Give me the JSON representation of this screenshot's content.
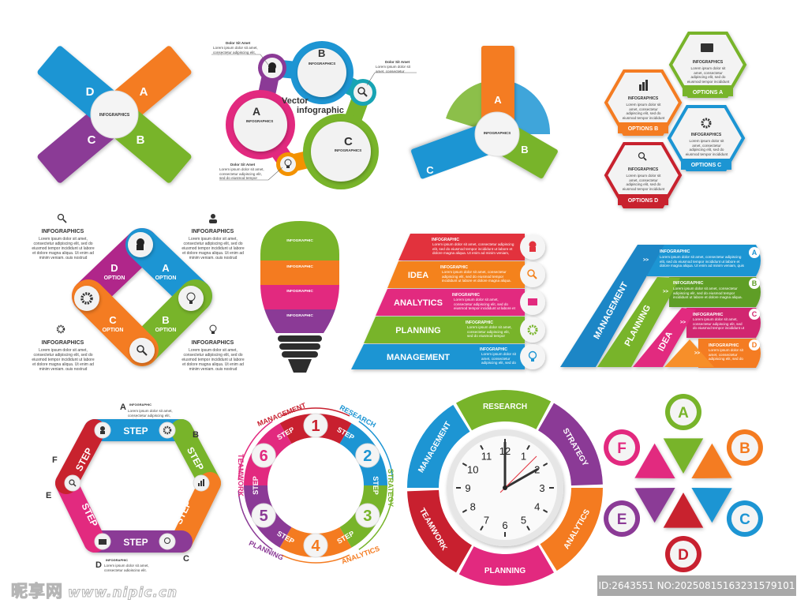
{
  "lorem": "Lorem ipsum dolor sit amet, consectetur adipiscing elit, sed do eiusmod tempor incididunt ut labore et dolore magna aliqua. Ut enim ad minim veniam, quis nostrud exercitation ullamco.",
  "colors": {
    "orange": "#f47b20",
    "green": "#78b42a",
    "blue": "#1d95d3",
    "purple": "#8b3a96",
    "pink": "#e2297f",
    "red": "#c8202f",
    "teal": "#18a4b4"
  },
  "x_diagram": {
    "letters": [
      "A",
      "B",
      "C",
      "D"
    ],
    "center_title": "INFOGRAPHICS"
  },
  "vector_diagram": {
    "title_line1": "Vector",
    "title_line2": "infographic",
    "circle_title": "INFOGRAPHICS",
    "letters": [
      "A",
      "B",
      "C"
    ],
    "callout_title": "Dolor Sit Amet",
    "icons": [
      "head-icon",
      "magnifier-icon",
      "bulb-icon"
    ]
  },
  "propeller": {
    "letters": [
      "A",
      "B",
      "C"
    ],
    "center_title": "INFOGRAPHICS"
  },
  "hexagons": {
    "title": "INFOGRAPHICS",
    "options": [
      "OPTIONS A",
      "OPTIONS B",
      "OPTIONS C",
      "OPTIONS D"
    ],
    "icons": [
      "briefcase-icon",
      "chart-icon",
      "gear-icon",
      "magnifier-icon"
    ]
  },
  "diamond": {
    "letters": [
      "D",
      "A",
      "B",
      "C"
    ],
    "option": "OPTION",
    "title": "INFOGRAPHICS"
  },
  "bulb": {
    "band_title": "INFOGRAPHIC"
  },
  "pyramid": {
    "levels": [
      "",
      "IDEA",
      "ANALYTICS",
      "PLANNING",
      "MANAGEMENT"
    ],
    "row_title": "INFOGRAPHIC"
  },
  "triangle": {
    "bands": [
      "MANAGEMENT",
      "PLANNING",
      "IDEA"
    ],
    "rows": [
      "A",
      "B",
      "C",
      "D"
    ],
    "row_title": "INFOGRAPHIC",
    "arrow": ">>"
  },
  "hex_steps": {
    "step": "STEP",
    "letters": [
      "A",
      "B",
      "C",
      "D",
      "E",
      "F"
    ],
    "title": "INFOGRAPHIC"
  },
  "ring_steps": {
    "step": "STEP",
    "numbers": [
      "1",
      "2",
      "3",
      "4",
      "5",
      "6"
    ],
    "labels": [
      "MANAGEMENT",
      "RESEARCH",
      "STRATEGY",
      "ANALYTICS",
      "PLANNING",
      "TEAMWORK"
    ]
  },
  "clock": {
    "labels": [
      "RESEARCH",
      "STRATEGY",
      "ANALYTICS",
      "PLANNING",
      "TEAMWORK",
      "MANAGEMENT"
    ],
    "numbers": [
      "12",
      "1",
      "2",
      "3",
      "4",
      "5",
      "6",
      "7",
      "8",
      "9",
      "10",
      "11"
    ]
  },
  "flower": {
    "letters": [
      "A",
      "B",
      "C",
      "D",
      "E",
      "F"
    ]
  },
  "watermark": {
    "logo": "昵享网",
    "url": "www.nipic.cn",
    "id": "ID:2643551 NO:20250815163231579101"
  }
}
